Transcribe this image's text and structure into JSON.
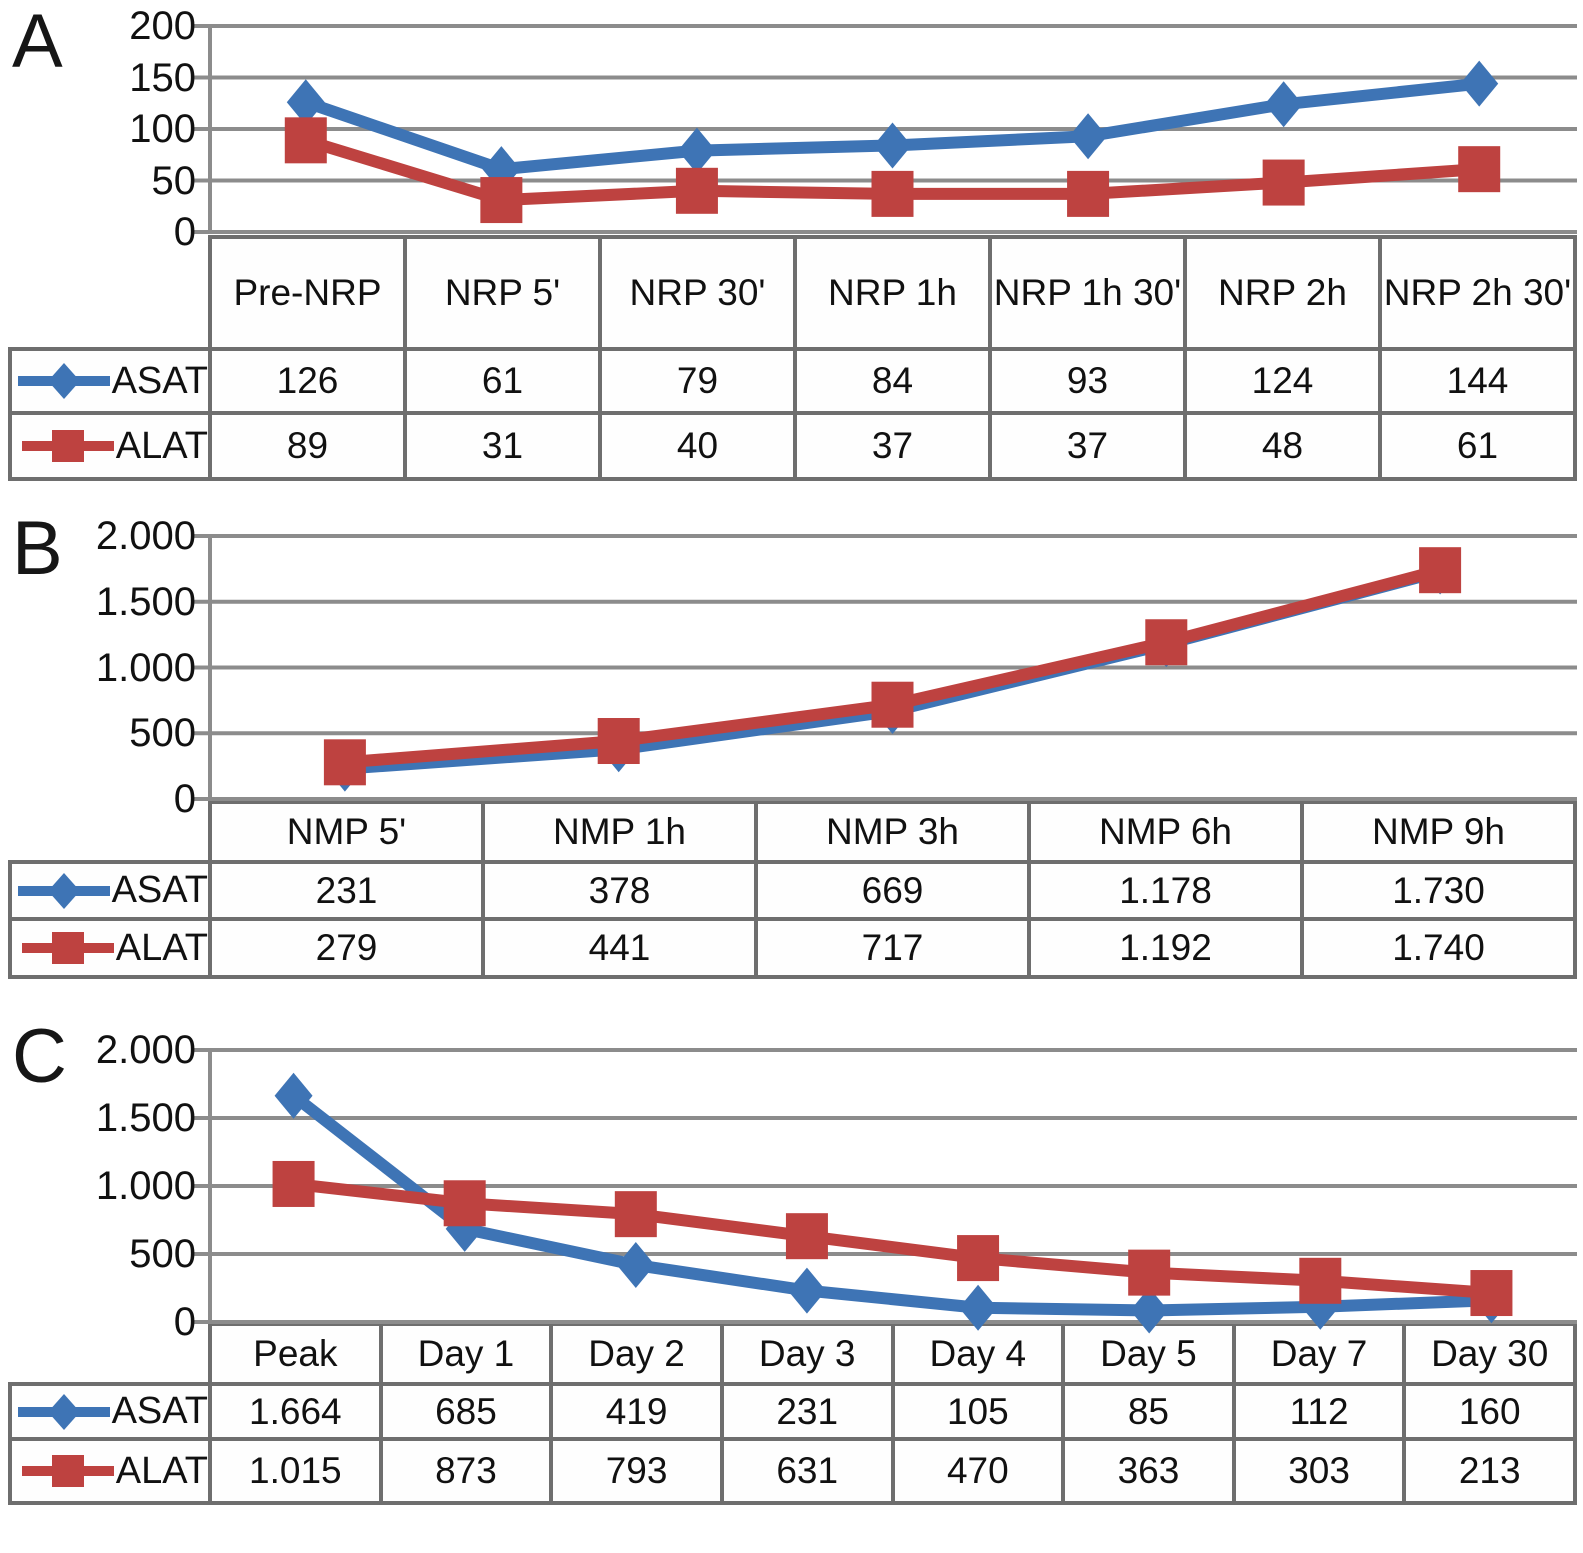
{
  "figure": {
    "grid_color": "#8c8c8c",
    "table_border_color": "#6e6e6e",
    "background_color": "#ffffff",
    "series_colors": {
      "ASAT": "#3E74B5",
      "ALAT": "#BE4240"
    }
  },
  "chart_data": [
    {
      "type": "line",
      "panel_label": "A",
      "categories": [
        "Pre-NRP",
        "NRP 5'",
        "NRP 30'",
        "NRP 1h",
        "NRP 1h 30'",
        "NRP 2h",
        "NRP 2h 30'"
      ],
      "series": [
        {
          "name": "ASAT",
          "marker": "diamond",
          "color": "#3E74B5",
          "values": [
            126,
            61,
            79,
            84,
            93,
            124,
            144
          ],
          "display": [
            "126",
            "61",
            "79",
            "84",
            "93",
            "124",
            "144"
          ]
        },
        {
          "name": "ALAT",
          "marker": "square",
          "color": "#BE4240",
          "values": [
            89,
            31,
            40,
            37,
            37,
            48,
            61
          ],
          "display": [
            "89",
            "31",
            "40",
            "37",
            "37",
            "48",
            "61"
          ]
        }
      ],
      "ylim": [
        0,
        200
      ],
      "yticks": [
        {
          "value": 200,
          "label": "200"
        },
        {
          "value": 150,
          "label": "150"
        },
        {
          "value": 100,
          "label": "100"
        },
        {
          "value": 50,
          "label": "50"
        },
        {
          "value": 0,
          "label": "0"
        }
      ],
      "grid": true,
      "legend_position": "table-left"
    },
    {
      "type": "line",
      "panel_label": "B",
      "categories": [
        "NMP 5'",
        "NMP 1h",
        "NMP 3h",
        "NMP 6h",
        "NMP 9h"
      ],
      "series": [
        {
          "name": "ASAT",
          "marker": "diamond",
          "color": "#3E74B5",
          "values": [
            231,
            378,
            669,
            1178,
            1730
          ],
          "display": [
            "231",
            "378",
            "669",
            "1.178",
            "1.730"
          ]
        },
        {
          "name": "ALAT",
          "marker": "square",
          "color": "#BE4240",
          "values": [
            279,
            441,
            717,
            1192,
            1740
          ],
          "display": [
            "279",
            "441",
            "717",
            "1.192",
            "1.740"
          ]
        }
      ],
      "ylim": [
        0,
        2000
      ],
      "yticks": [
        {
          "value": 2000,
          "label": "2.000"
        },
        {
          "value": 1500,
          "label": "1.500"
        },
        {
          "value": 1000,
          "label": "1.000"
        },
        {
          "value": 500,
          "label": "500"
        },
        {
          "value": 0,
          "label": "0"
        }
      ],
      "grid": true,
      "legend_position": "table-left"
    },
    {
      "type": "line",
      "panel_label": "C",
      "categories": [
        "Peak",
        "Day 1",
        "Day 2",
        "Day 3",
        "Day 4",
        "Day 5",
        "Day 7",
        "Day 30"
      ],
      "series": [
        {
          "name": "ASAT",
          "marker": "diamond",
          "color": "#3E74B5",
          "values": [
            1664,
            685,
            419,
            231,
            105,
            85,
            112,
            160
          ],
          "display": [
            "1.664",
            "685",
            "419",
            "231",
            "105",
            "85",
            "112",
            "160"
          ]
        },
        {
          "name": "ALAT",
          "marker": "square",
          "color": "#BE4240",
          "values": [
            1015,
            873,
            793,
            631,
            470,
            363,
            303,
            213
          ],
          "display": [
            "1.015",
            "873",
            "793",
            "631",
            "470",
            "363",
            "303",
            "213"
          ]
        }
      ],
      "ylim": [
        0,
        2000
      ],
      "yticks": [
        {
          "value": 2000,
          "label": "2.000"
        },
        {
          "value": 1500,
          "label": "1.500"
        },
        {
          "value": 1000,
          "label": "1.000"
        },
        {
          "value": 500,
          "label": "500"
        },
        {
          "value": 0,
          "label": "0"
        }
      ],
      "grid": true,
      "legend_position": "table-left"
    }
  ]
}
